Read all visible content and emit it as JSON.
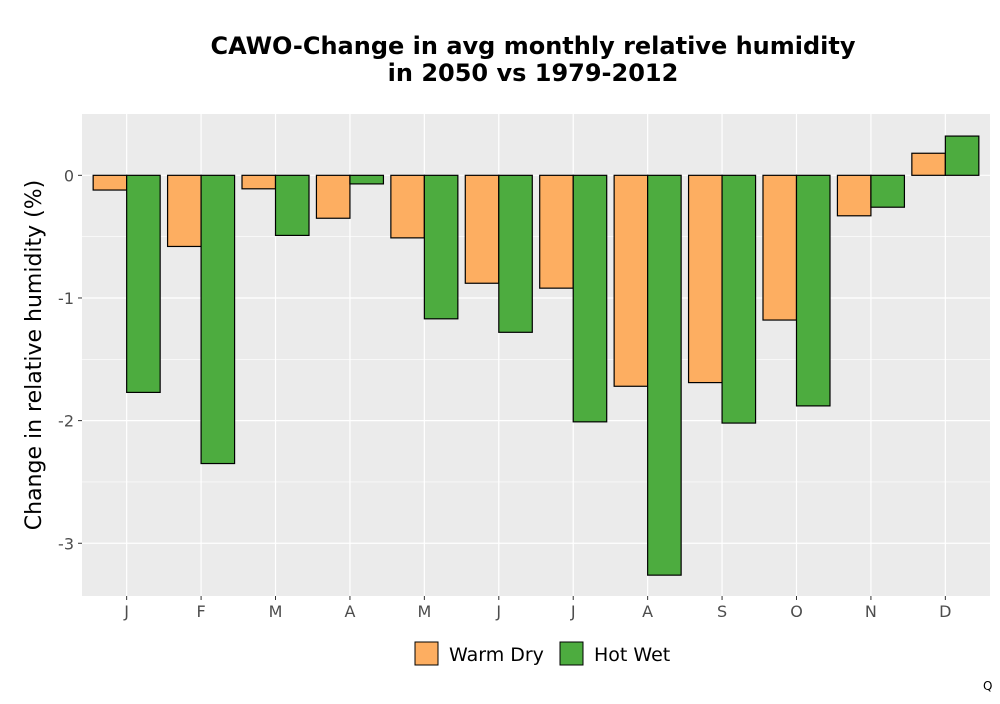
{
  "chart_data": {
    "type": "bar",
    "title": [
      "CAWO-Change in avg monthly relative humidity",
      "in 2050 vs 1979-2012"
    ],
    "xlabel": "",
    "ylabel": "Change in relative humidity (%)",
    "categories": [
      "J",
      "F",
      "M",
      "A",
      "M",
      "J",
      "J",
      "A",
      "S",
      "O",
      "N",
      "D"
    ],
    "series": [
      {
        "name": "Warm Dry",
        "color": "#FDAE61",
        "values": [
          -0.12,
          -0.58,
          -0.11,
          -0.35,
          -0.51,
          -0.88,
          -0.92,
          -1.72,
          -1.69,
          -1.18,
          -0.33,
          0.18
        ]
      },
      {
        "name": "Hot Wet",
        "color": "#4DAC3F",
        "values": [
          -1.77,
          -2.35,
          -0.49,
          -0.07,
          -1.17,
          -1.28,
          -2.01,
          -3.26,
          -2.02,
          -1.88,
          -0.26,
          0.32
        ]
      }
    ],
    "ylim": [
      -3.43,
      0.5
    ],
    "yticks": [
      0,
      -1,
      -2,
      -3
    ],
    "ytick_labels": [
      "0",
      "-1",
      "-2",
      "-3"
    ],
    "grid": true,
    "legend_position": "bottom",
    "panel_background": "#EBEBEB",
    "corner_mark": "Q"
  }
}
